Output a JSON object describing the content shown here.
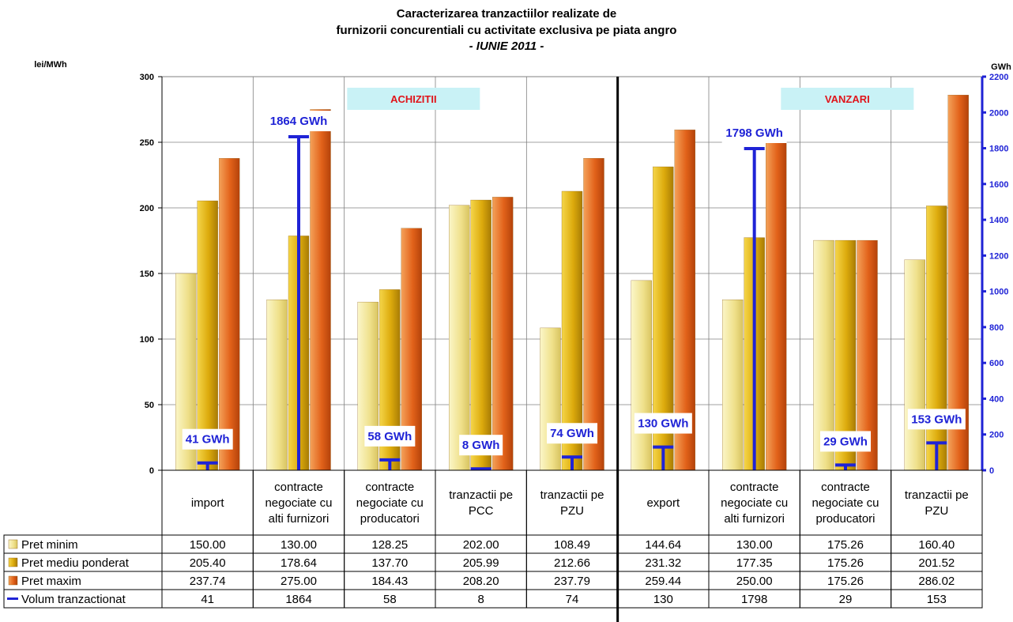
{
  "chart_data": {
    "type": "bar",
    "title": "Caracterizarea tranzactiilor realizate de",
    "title_line2": "furnizorii concurentiali cu activitate exclusiva pe piata angro",
    "subtitle": "- IUNIE 2011 -",
    "ylabel": "lei/MWh",
    "y2label": "GWh",
    "ylim": [
      0,
      300
    ],
    "y2lim": [
      0,
      2200
    ],
    "yticks": [
      "0",
      "50",
      "100",
      "150",
      "200",
      "250",
      "300"
    ],
    "y2ticks": [
      "0",
      "200",
      "400",
      "600",
      "800",
      "1000",
      "1200",
      "1400",
      "1600",
      "1800",
      "2000",
      "2200"
    ],
    "grid": true,
    "groups": [
      {
        "label": "ACHIZITII",
        "span": [
          0,
          4
        ]
      },
      {
        "label": "VANZARI",
        "span": [
          5,
          8
        ]
      }
    ],
    "categories": [
      [
        "import"
      ],
      [
        "contracte",
        "negociate cu",
        "alti furnizori"
      ],
      [
        "contracte",
        "negociate cu",
        "producatori"
      ],
      [
        "tranzactii pe",
        "PCC"
      ],
      [
        "tranzactii pe",
        "PZU"
      ],
      [
        "export"
      ],
      [
        "contracte",
        "negociate cu",
        "alti furnizori"
      ],
      [
        "contracte",
        "negociate cu",
        "producatori"
      ],
      [
        "tranzactii pe",
        "PZU"
      ]
    ],
    "series": [
      {
        "name": "Pret minim",
        "color": "#f2e69a",
        "axis": "left",
        "values": [
          150.0,
          130.0,
          128.25,
          202.0,
          108.49,
          144.64,
          130.0,
          175.26,
          160.4
        ],
        "cells": [
          "150.00",
          "130.00",
          "128.25",
          "202.00",
          "108.49",
          "144.64",
          "130.00",
          "175.26",
          "160.40"
        ]
      },
      {
        "name": "Pret mediu ponderat",
        "color": "#e2b010",
        "axis": "left",
        "values": [
          205.4,
          178.64,
          137.7,
          205.99,
          212.66,
          231.32,
          177.35,
          175.26,
          201.52
        ],
        "cells": [
          "205.40",
          "178.64",
          "137.70",
          "205.99",
          "212.66",
          "231.32",
          "177.35",
          "175.26",
          "201.52"
        ]
      },
      {
        "name": "Pret maxim",
        "color": "#e0641a",
        "axis": "left",
        "values": [
          237.74,
          275.0,
          184.43,
          208.2,
          237.79,
          259.44,
          250.0,
          175.26,
          286.02
        ],
        "cells": [
          "237.74",
          "275.00",
          "184.43",
          "208.20",
          "237.79",
          "259.44",
          "250.00",
          "175.26",
          "286.02"
        ]
      },
      {
        "name": "Volum tranzactionat",
        "color": "#1f23d6",
        "axis": "right",
        "values": [
          41,
          1864,
          58,
          8,
          74,
          130,
          1798,
          29,
          153
        ],
        "cells": [
          "41",
          "1864",
          "58",
          "8",
          "74",
          "130",
          "1798",
          "29",
          "153"
        ]
      }
    ],
    "volume_labels": [
      "41 GWh",
      "1864 GWh",
      "58 GWh",
      "8 GWh",
      "74 GWh",
      "130 GWh",
      "1798 GWh",
      "29 GWh",
      "153 GWh"
    ]
  }
}
